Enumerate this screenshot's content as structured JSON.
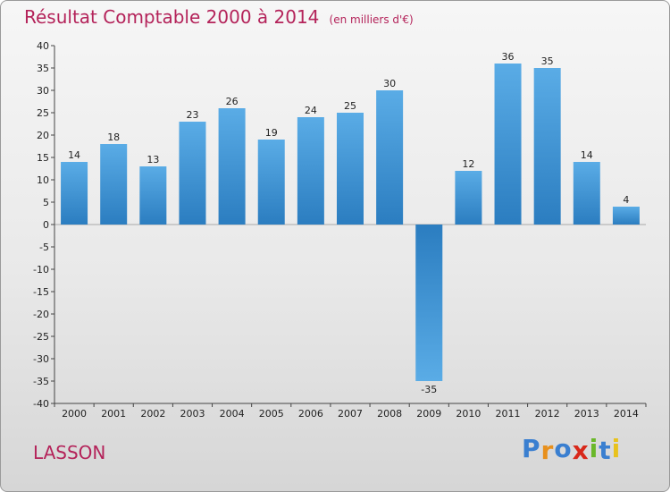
{
  "header": {
    "title": "Résultat Comptable 2000 à 2014",
    "subtitle": "(en milliers d'€)"
  },
  "footer": {
    "commune": "LASSON",
    "logo_letters": [
      "P",
      "r",
      "o",
      "x",
      "i",
      "t",
      "i"
    ]
  },
  "colors": {
    "title": "#b4235a",
    "bar_top": "#5aace6",
    "bar_bottom": "#2b7dc0",
    "logo": [
      "#3a7fd0",
      "#e8901c",
      "#3a7fd0",
      "#d8281a",
      "#6ab82a",
      "#3a7fd0",
      "#e8c21c"
    ]
  },
  "chart_data": {
    "type": "bar",
    "title": "Résultat Comptable 2000 à 2014",
    "ylabel": "(en milliers d'€)",
    "xlabel": "",
    "categories": [
      "2000",
      "2001",
      "2002",
      "2003",
      "2004",
      "2005",
      "2006",
      "2007",
      "2008",
      "2009",
      "2010",
      "2011",
      "2012",
      "2013",
      "2014"
    ],
    "values": [
      14,
      18,
      13,
      23,
      26,
      19,
      24,
      25,
      30,
      -35,
      12,
      36,
      35,
      14,
      4
    ],
    "ylim": [
      -40,
      40
    ],
    "yticks": [
      40,
      35,
      30,
      25,
      20,
      15,
      10,
      5,
      0,
      -5,
      -10,
      -15,
      -20,
      -25,
      -30,
      -35,
      -40
    ],
    "grid": false,
    "legend": "none"
  }
}
